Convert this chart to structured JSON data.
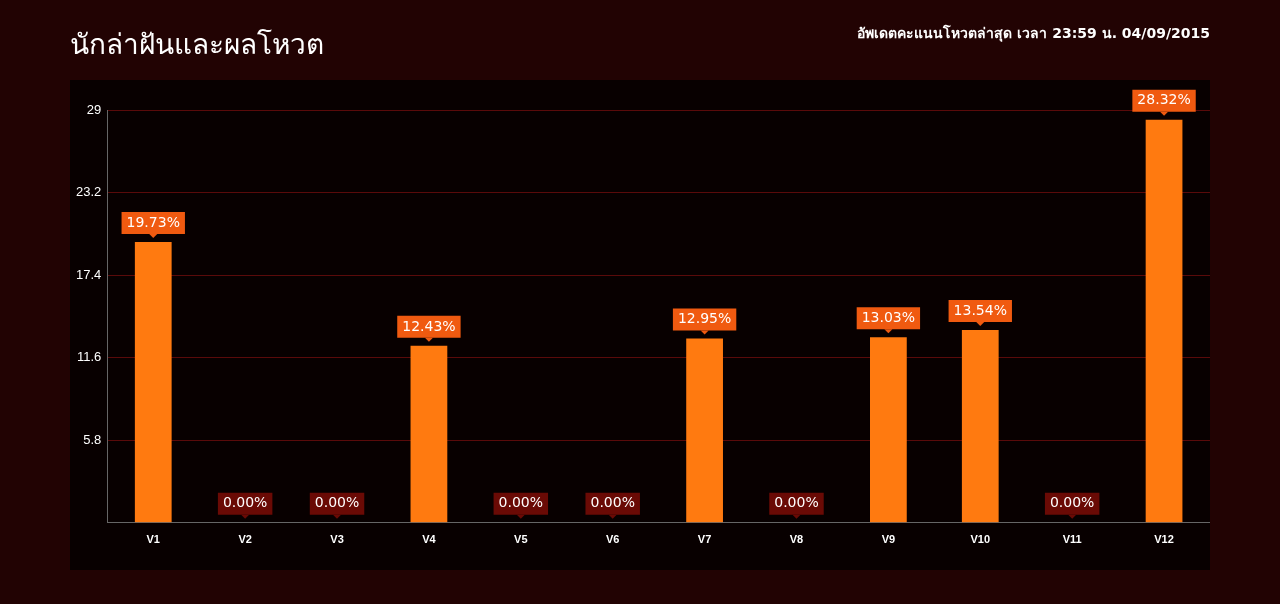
{
  "chart_data": {
    "type": "bar",
    "title": "นักล่าฝันและผลโหวต",
    "subtitle": "อัพเดตคะแนนโหวตล่าสุด เวลา 23:59 น. 04/09/2015",
    "categories": [
      "V1",
      "V2",
      "V3",
      "V4",
      "V5",
      "V6",
      "V7",
      "V8",
      "V9",
      "V10",
      "V11",
      "V12"
    ],
    "values": [
      19.73,
      0,
      0,
      12.43,
      0,
      0,
      12.95,
      0,
      13.03,
      13.54,
      0,
      28.32
    ],
    "value_labels": [
      "19.73%",
      "0.00%",
      "0.00%",
      "12.43%",
      "0.00%",
      "0.00%",
      "12.95%",
      "0.00%",
      "13.03%",
      "13.54%",
      "0.00%",
      "28.32%"
    ],
    "color": "#ff7a10",
    "ylim": [
      0,
      29
    ],
    "yticks": [
      {
        "value": 0,
        "label": null
      },
      5.8,
      11.6,
      17.4,
      23.2,
      29
    ],
    "grid": "y"
  }
}
